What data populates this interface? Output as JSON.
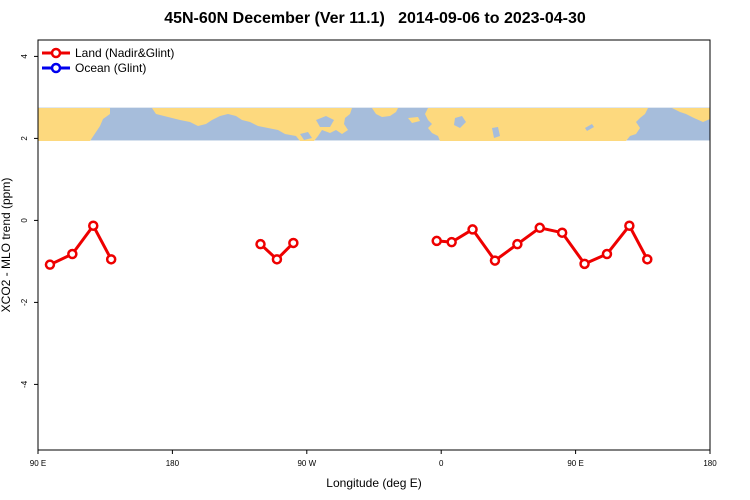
{
  "chart_data": {
    "type": "line",
    "title": "45N-60N December (Ver 11.1)   2014-09-06 to 2023-04-30",
    "xlabel": "Longitude (deg E)",
    "ylabel": "XCO2 - MLO trend (ppm)",
    "x_ticks": [
      {
        "value": 90,
        "label": "90 E"
      },
      {
        "value": 180,
        "label": "180"
      },
      {
        "value": 270,
        "label": "90 W"
      },
      {
        "value": 360,
        "label": "0"
      },
      {
        "value": 450,
        "label": "90 E"
      },
      {
        "value": 540,
        "label": "180"
      }
    ],
    "y_ticks": [
      {
        "value": -4,
        "label": "-4"
      },
      {
        "value": -2,
        "label": "-2"
      },
      {
        "value": 0,
        "label": "0"
      },
      {
        "value": 2,
        "label": "2"
      },
      {
        "value": 4,
        "label": "4"
      }
    ],
    "xlim": [
      90,
      540
    ],
    "ylim": [
      -5.6,
      4.4
    ],
    "legend": {
      "placement": "top-left"
    },
    "map_band": {
      "ylim": [
        1.95,
        2.75
      ],
      "land_color": "#FDD97E",
      "ocean_color": "#A6BDDB"
    },
    "series": [
      {
        "name": "Land (Nadir&Glint)",
        "color": "#EE0000",
        "segments": [
          [
            [
              98,
              -1.08
            ],
            [
              113,
              -0.82
            ],
            [
              127,
              -0.13
            ],
            [
              139,
              -0.95
            ]
          ],
          [
            [
              239,
              -0.58
            ],
            [
              250,
              -0.95
            ],
            [
              261,
              -0.55
            ]
          ],
          [
            [
              357,
              -0.5
            ],
            [
              367,
              -0.53
            ],
            [
              381,
              -0.22
            ],
            [
              396,
              -0.98
            ],
            [
              411,
              -0.58
            ],
            [
              426,
              -0.18
            ],
            [
              441,
              -0.3
            ],
            [
              456,
              -1.06
            ],
            [
              471,
              -0.82
            ],
            [
              486,
              -0.13
            ],
            [
              498,
              -0.95
            ]
          ]
        ]
      },
      {
        "name": "Ocean (Glint)",
        "color": "#0000EE",
        "segments": []
      }
    ]
  }
}
